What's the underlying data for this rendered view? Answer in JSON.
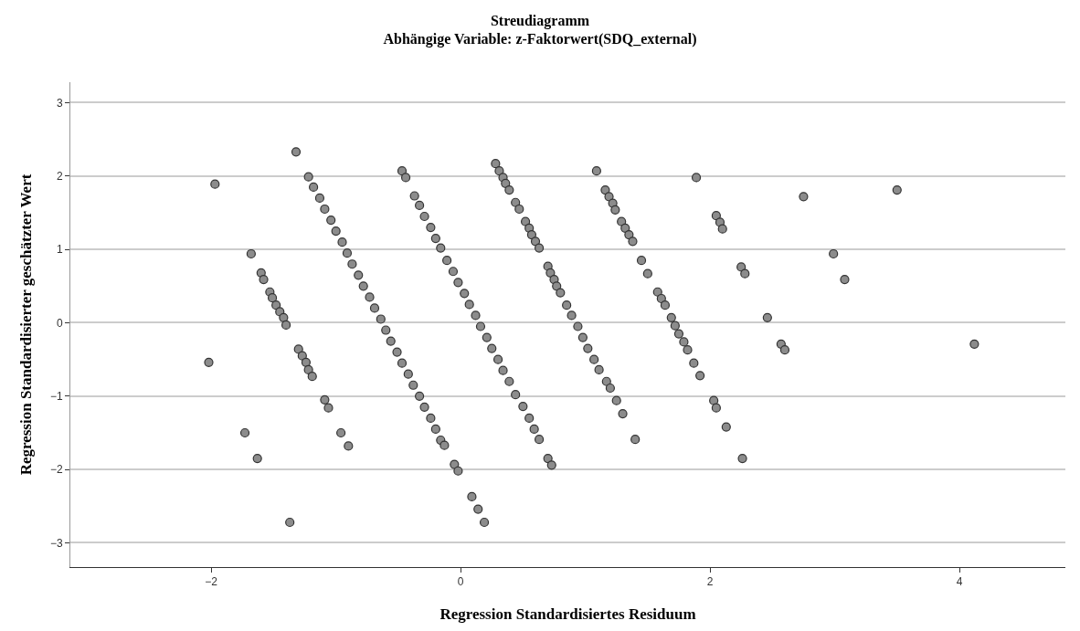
{
  "chart_data": {
    "type": "scatter",
    "title": "Streudiagramm",
    "subtitle": "Abhängige Variable: z-Faktorwert(SDQ_external)",
    "xlabel": "Regression Standardisiertes Residuum",
    "ylabel": "Regression Standardisierter geschätzter Wert",
    "x": [
      -1.97,
      -1.32,
      -1.68,
      -1.6,
      -1.58,
      -1.53,
      -1.51,
      -1.48,
      -1.45,
      -1.42,
      -1.4,
      -2.02,
      -1.3,
      -1.27,
      -1.24,
      -1.22,
      -1.19,
      -1.09,
      -1.06,
      -1.73,
      -1.63,
      -0.96,
      -0.9,
      -1.37,
      -1.22,
      -1.18,
      -1.13,
      -1.09,
      -1.04,
      -1.0,
      -0.95,
      -0.91,
      -0.87,
      -0.82,
      -0.78,
      -0.73,
      -0.69,
      -0.64,
      -0.6,
      -0.56,
      -0.51,
      -0.47,
      -0.42,
      -0.38,
      -0.33,
      -0.29,
      -0.24,
      -0.2,
      -0.16,
      -0.13,
      -0.05,
      -0.02,
      0.09,
      0.14,
      0.19,
      -0.47,
      -0.44,
      -0.37,
      -0.33,
      -0.29,
      -0.24,
      -0.2,
      -0.16,
      -0.11,
      -0.06,
      -0.02,
      0.03,
      0.07,
      0.12,
      0.16,
      0.21,
      0.25,
      0.3,
      0.34,
      0.39,
      0.44,
      0.5,
      0.55,
      0.59,
      0.63,
      0.7,
      0.73,
      0.28,
      0.31,
      0.34,
      0.36,
      0.39,
      0.44,
      0.47,
      0.52,
      0.55,
      0.57,
      0.6,
      0.63,
      0.7,
      0.72,
      0.75,
      0.77,
      0.8,
      0.85,
      0.89,
      0.94,
      0.98,
      1.02,
      1.07,
      1.11,
      1.17,
      1.2,
      1.25,
      1.3,
      1.4,
      1.09,
      1.16,
      1.19,
      1.22,
      1.24,
      1.29,
      1.32,
      1.35,
      1.38,
      1.45,
      1.5,
      1.58,
      1.61,
      1.64,
      1.69,
      1.72,
      1.75,
      1.79,
      1.82,
      1.87,
      1.92,
      2.03,
      2.05,
      2.13,
      2.26,
      1.89,
      2.05,
      2.08,
      2.1,
      2.25,
      2.28,
      2.46,
      2.57,
      2.6,
      2.75,
      2.99,
      3.08,
      3.5,
      4.12
    ],
    "values": [
      1.89,
      2.33,
      0.94,
      0.68,
      0.59,
      0.42,
      0.34,
      0.24,
      0.15,
      0.07,
      -0.03,
      -0.54,
      -0.36,
      -0.45,
      -0.54,
      -0.64,
      -0.73,
      -1.05,
      -1.16,
      -1.5,
      -1.85,
      -1.5,
      -1.68,
      -2.72,
      1.99,
      1.85,
      1.7,
      1.55,
      1.4,
      1.25,
      1.1,
      0.95,
      0.8,
      0.65,
      0.5,
      0.35,
      0.2,
      0.05,
      -0.1,
      -0.25,
      -0.4,
      -0.55,
      -0.7,
      -0.85,
      -1.0,
      -1.15,
      -1.3,
      -1.45,
      -1.6,
      -1.67,
      -1.93,
      -2.02,
      -2.37,
      -2.54,
      -2.72,
      2.07,
      1.98,
      1.73,
      1.6,
      1.45,
      1.3,
      1.15,
      1.02,
      0.85,
      0.7,
      0.55,
      0.4,
      0.25,
      0.1,
      -0.05,
      -0.2,
      -0.35,
      -0.5,
      -0.65,
      -0.8,
      -0.98,
      -1.14,
      -1.3,
      -1.45,
      -1.59,
      -1.85,
      -1.94,
      2.17,
      2.07,
      1.98,
      1.9,
      1.81,
      1.64,
      1.55,
      1.38,
      1.29,
      1.2,
      1.11,
      1.02,
      0.77,
      0.68,
      0.59,
      0.5,
      0.41,
      0.24,
      0.1,
      -0.05,
      -0.2,
      -0.35,
      -0.5,
      -0.64,
      -0.8,
      -0.89,
      -1.06,
      -1.24,
      -1.59,
      2.07,
      1.81,
      1.72,
      1.63,
      1.54,
      1.38,
      1.29,
      1.2,
      1.11,
      0.85,
      0.67,
      0.42,
      0.33,
      0.24,
      0.07,
      -0.04,
      -0.15,
      -0.26,
      -0.37,
      -0.55,
      -0.72,
      -1.06,
      -1.16,
      -1.42,
      -1.85,
      1.98,
      1.46,
      1.37,
      1.28,
      0.76,
      0.67,
      0.07,
      -0.29,
      -0.37,
      1.72,
      0.94,
      0.59,
      1.81,
      -0.29
    ],
    "color": "#8c8c8c",
    "marker": "circle",
    "grid": "y",
    "xlim": [
      -3.13,
      4.85
    ],
    "xticks": [
      -2,
      0,
      2,
      4
    ],
    "ylim": [
      -3.33,
      3.28
    ],
    "yticks": [
      -3,
      -2,
      -1,
      0,
      1,
      2,
      3
    ]
  }
}
